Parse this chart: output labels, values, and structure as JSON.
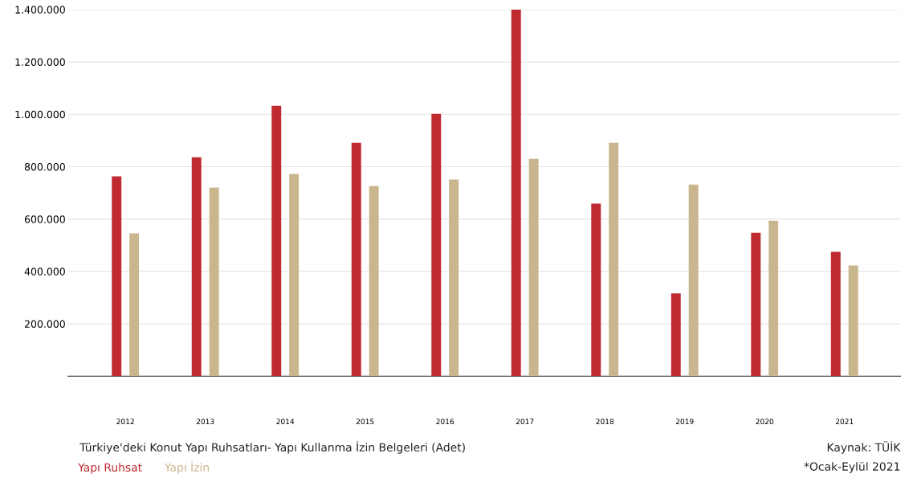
{
  "chart_data": {
    "type": "bar",
    "title": "Türkiye'deki Konut Yapı Ruhsatları- Yapı Kullanma İzin Belgeleri (Adet)",
    "categories": [
      "2012",
      "2013",
      "2014",
      "2015",
      "2016",
      "2017",
      "2018",
      "2019",
      "2020",
      "2021"
    ],
    "series": [
      {
        "name": "Yapı Ruhsat",
        "color": "#c0292f",
        "values": [
          763000,
          836000,
          1032000,
          891000,
          1002000,
          1400000,
          659000,
          316000,
          548000,
          475000
        ]
      },
      {
        "name": "Yapı İzin",
        "color": "#c9b68f",
        "values": [
          545000,
          720000,
          772000,
          726000,
          751000,
          830000,
          891000,
          732000,
          594000,
          423000
        ]
      }
    ],
    "ylim": [
      0,
      1400000
    ],
    "yticks": [
      {
        "value": 200000,
        "label": "200.000"
      },
      {
        "value": 400000,
        "label": "400.000"
      },
      {
        "value": 600000,
        "label": "600.000"
      },
      {
        "value": 800000,
        "label": "800.000"
      },
      {
        "value": 1000000,
        "label": "1.000.000"
      },
      {
        "value": 1200000,
        "label": "1.200.000"
      },
      {
        "value": 1400000,
        "label": "1.400.000"
      }
    ],
    "grid": "y",
    "legend": "bottom left",
    "annotations": [
      "Kaynak: TÜİK",
      "*Ocak-Eylül 2021"
    ]
  }
}
